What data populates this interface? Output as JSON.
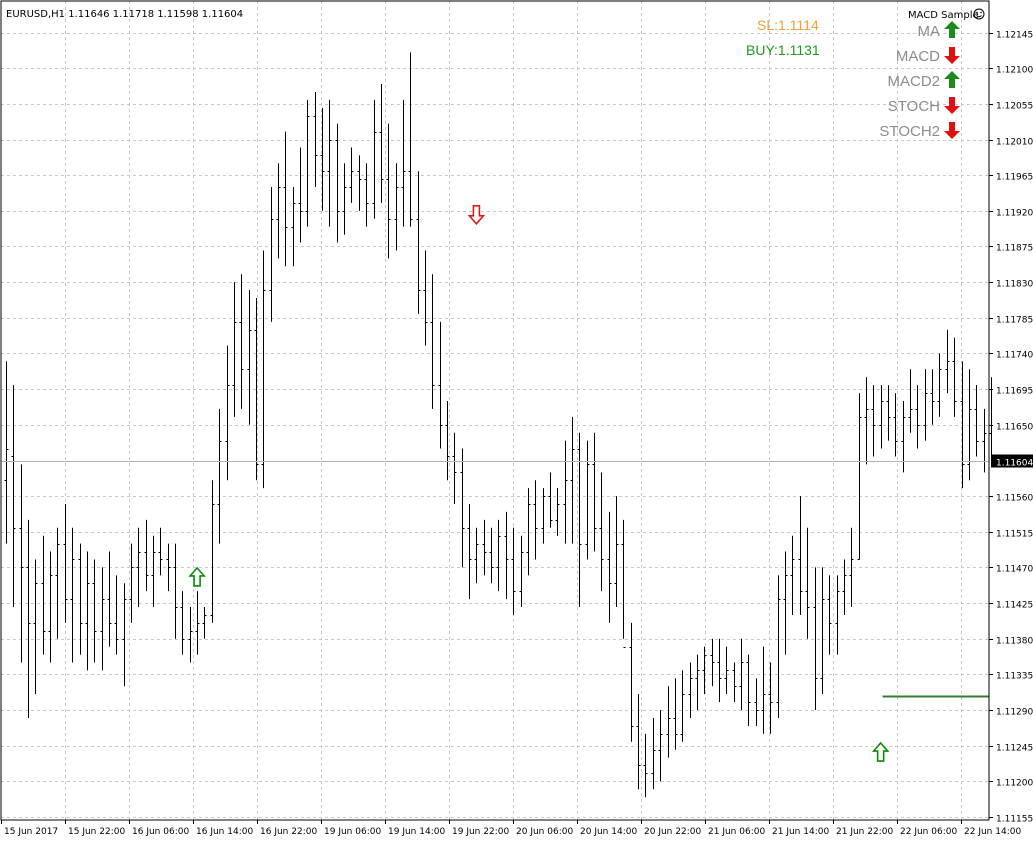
{
  "chart_data": {
    "type": "ohlc",
    "symbol_header": "EURUSD,H1  1.11646 1.11718 1.11598 1.11604",
    "expert_name": "MACD Sample",
    "ylim": [
      1.11155,
      1.12152
    ],
    "y_ticks": [
      "1.12145",
      "1.12100",
      "1.12055",
      "1.12010",
      "1.11965",
      "1.11920",
      "1.11875",
      "1.11830",
      "1.11785",
      "1.11740",
      "1.11695",
      "1.11650",
      "1.11604",
      "1.11560",
      "1.11515",
      "1.11470",
      "1.11425",
      "1.11380",
      "1.11335",
      "1.11290",
      "1.11245",
      "1.11200",
      "1.11155"
    ],
    "y_tick_values": [
      1.12145,
      1.121,
      1.12055,
      1.1201,
      1.11965,
      1.1192,
      1.11875,
      1.1183,
      1.11785,
      1.1174,
      1.11695,
      1.1165,
      1.11604,
      1.1156,
      1.11515,
      1.1147,
      1.11425,
      1.1138,
      1.11335,
      1.1129,
      1.11245,
      1.112,
      1.11155
    ],
    "x_ticks": [
      "15 Jun 2017",
      "15 Jun 22:00",
      "16 Jun 06:00",
      "16 Jun 14:00",
      "16 Jun 22:00",
      "19 Jun 06:00",
      "19 Jun 14:00",
      "19 Jun 22:00",
      "20 Jun 06:00",
      "20 Jun 14:00",
      "20 Jun 22:00",
      "21 Jun 06:00",
      "21 Jun 14:00",
      "21 Jun 22:00",
      "22 Jun 06:00",
      "22 Jun 14:00"
    ],
    "current_price": 1.11604,
    "current_price_label": "1.11604",
    "grid": true,
    "bars": [
      [
        1.1158,
        1.1173,
        1.115,
        1.1162
      ],
      [
        1.1161,
        1.117,
        1.1142,
        1.1152
      ],
      [
        1.1152,
        1.116,
        1.1135,
        1.1147
      ],
      [
        1.1147,
        1.1153,
        1.1128,
        1.114
      ],
      [
        1.114,
        1.1148,
        1.1131,
        1.1145
      ],
      [
        1.1145,
        1.1151,
        1.1136,
        1.1139
      ],
      [
        1.1139,
        1.1149,
        1.1135,
        1.1146
      ],
      [
        1.1146,
        1.1152,
        1.1138,
        1.115
      ],
      [
        1.115,
        1.1155,
        1.114,
        1.1143
      ],
      [
        1.1143,
        1.1152,
        1.1135,
        1.1148
      ],
      [
        1.1148,
        1.115,
        1.1136,
        1.114
      ],
      [
        1.114,
        1.1149,
        1.1134,
        1.1145
      ],
      [
        1.1145,
        1.1148,
        1.1135,
        1.1139
      ],
      [
        1.1139,
        1.1147,
        1.1134,
        1.1143
      ],
      [
        1.1143,
        1.1149,
        1.1137,
        1.114
      ],
      [
        1.114,
        1.1146,
        1.1136,
        1.1138
      ],
      [
        1.1138,
        1.1145,
        1.1132,
        1.1143
      ],
      [
        1.1143,
        1.115,
        1.114,
        1.1147
      ],
      [
        1.1147,
        1.1152,
        1.1142,
        1.1149
      ],
      [
        1.1149,
        1.1153,
        1.1144,
        1.1146
      ],
      [
        1.1146,
        1.1151,
        1.1142,
        1.1149
      ],
      [
        1.1149,
        1.1152,
        1.1146,
        1.1148
      ],
      [
        1.1148,
        1.115,
        1.1144,
        1.1147
      ],
      [
        1.1147,
        1.115,
        1.1138,
        1.1142
      ],
      [
        1.1142,
        1.1144,
        1.1136,
        1.1138
      ],
      [
        1.1138,
        1.1142,
        1.1135,
        1.1139
      ],
      [
        1.1139,
        1.1144,
        1.1136,
        1.114
      ],
      [
        1.114,
        1.1142,
        1.1138,
        1.1141
      ],
      [
        1.1141,
        1.1158,
        1.114,
        1.1155
      ],
      [
        1.1155,
        1.1167,
        1.115,
        1.1163
      ],
      [
        1.1163,
        1.1175,
        1.1158,
        1.117
      ],
      [
        1.117,
        1.1183,
        1.1166,
        1.1178
      ],
      [
        1.1178,
        1.1184,
        1.1167,
        1.1172
      ],
      [
        1.1172,
        1.1182,
        1.1165,
        1.1177
      ],
      [
        1.1177,
        1.1181,
        1.1158,
        1.116
      ],
      [
        1.116,
        1.1187,
        1.1157,
        1.1182
      ],
      [
        1.1182,
        1.1195,
        1.1178,
        1.1191
      ],
      [
        1.1191,
        1.1198,
        1.1186,
        1.1195
      ],
      [
        1.1195,
        1.1202,
        1.1185,
        1.119
      ],
      [
        1.119,
        1.1195,
        1.1185,
        1.1193
      ],
      [
        1.1193,
        1.12,
        1.1188,
        1.1192
      ],
      [
        1.1192,
        1.1206,
        1.119,
        1.1204
      ],
      [
        1.1204,
        1.1207,
        1.1195,
        1.1199
      ],
      [
        1.1199,
        1.1205,
        1.1192,
        1.1197
      ],
      [
        1.1197,
        1.1206,
        1.119,
        1.1201
      ],
      [
        1.1201,
        1.1203,
        1.1188,
        1.1192
      ],
      [
        1.1192,
        1.1198,
        1.1189,
        1.1195
      ],
      [
        1.1195,
        1.12,
        1.1193,
        1.1197
      ],
      [
        1.1197,
        1.1199,
        1.1192,
        1.1196
      ],
      [
        1.1196,
        1.1198,
        1.119,
        1.1193
      ],
      [
        1.1193,
        1.1206,
        1.1191,
        1.1202
      ],
      [
        1.1202,
        1.1208,
        1.1193,
        1.1196
      ],
      [
        1.1196,
        1.1203,
        1.1186,
        1.1191
      ],
      [
        1.1191,
        1.1198,
        1.1187,
        1.1195
      ],
      [
        1.1195,
        1.1206,
        1.119,
        1.1197
      ],
      [
        1.1197,
        1.1212,
        1.119,
        1.1191
      ],
      [
        1.1191,
        1.1197,
        1.1179,
        1.1182
      ],
      [
        1.1182,
        1.1187,
        1.1175,
        1.1178
      ],
      [
        1.1178,
        1.1184,
        1.1167,
        1.117
      ],
      [
        1.117,
        1.1178,
        1.1162,
        1.1165
      ],
      [
        1.1165,
        1.1168,
        1.1158,
        1.1161
      ],
      [
        1.1161,
        1.1164,
        1.1155,
        1.1159
      ],
      [
        1.1159,
        1.1162,
        1.1147,
        1.1152
      ],
      [
        1.1152,
        1.1155,
        1.1143,
        1.1148
      ],
      [
        1.1148,
        1.1152,
        1.1145,
        1.115
      ],
      [
        1.115,
        1.1153,
        1.1146,
        1.1149
      ],
      [
        1.1149,
        1.1152,
        1.1145,
        1.1147
      ],
      [
        1.1147,
        1.1153,
        1.1144,
        1.1151
      ],
      [
        1.1151,
        1.1154,
        1.1143,
        1.1148
      ],
      [
        1.1148,
        1.1152,
        1.1141,
        1.1144
      ],
      [
        1.1144,
        1.1151,
        1.1142,
        1.1149
      ],
      [
        1.1149,
        1.1157,
        1.1146,
        1.1155
      ],
      [
        1.1155,
        1.1158,
        1.1148,
        1.1152
      ],
      [
        1.1152,
        1.1157,
        1.115,
        1.1156
      ],
      [
        1.1156,
        1.1159,
        1.1152,
        1.1153
      ],
      [
        1.1153,
        1.1157,
        1.1151,
        1.1155
      ],
      [
        1.1155,
        1.1163,
        1.115,
        1.1158
      ],
      [
        1.1158,
        1.1166,
        1.115,
        1.1162
      ],
      [
        1.1162,
        1.1164,
        1.1142,
        1.115
      ],
      [
        1.115,
        1.1163,
        1.1148,
        1.116
      ],
      [
        1.116,
        1.1164,
        1.1149,
        1.1152
      ],
      [
        1.1152,
        1.1159,
        1.1144,
        1.1148
      ],
      [
        1.1148,
        1.1154,
        1.114,
        1.1145
      ],
      [
        1.1145,
        1.1156,
        1.1142,
        1.115
      ],
      [
        1.115,
        1.1153,
        1.1138,
        1.1137
      ],
      [
        1.1137,
        1.114,
        1.1125,
        1.1127
      ],
      [
        1.1127,
        1.1131,
        1.1119,
        1.1122
      ],
      [
        1.1122,
        1.1126,
        1.1118,
        1.1121
      ],
      [
        1.1121,
        1.1128,
        1.1119,
        1.1124
      ],
      [
        1.1124,
        1.1129,
        1.112,
        1.1126
      ],
      [
        1.1126,
        1.1132,
        1.1123,
        1.1128
      ],
      [
        1.1128,
        1.1133,
        1.1124,
        1.1126
      ],
      [
        1.1126,
        1.1134,
        1.1125,
        1.1131
      ],
      [
        1.1131,
        1.1135,
        1.1128,
        1.1133
      ],
      [
        1.1133,
        1.1136,
        1.1129,
        1.1134
      ],
      [
        1.1134,
        1.1137,
        1.1131,
        1.1136
      ],
      [
        1.1136,
        1.1138,
        1.1132,
        1.1135
      ],
      [
        1.1135,
        1.1138,
        1.113,
        1.1133
      ],
      [
        1.1133,
        1.1137,
        1.1131,
        1.1134
      ],
      [
        1.1134,
        1.1135,
        1.113,
        1.1132
      ],
      [
        1.1132,
        1.1138,
        1.1129,
        1.1135
      ],
      [
        1.1135,
        1.1136,
        1.1127,
        1.113
      ],
      [
        1.113,
        1.1133,
        1.1127,
        1.1129
      ],
      [
        1.1129,
        1.1137,
        1.1126,
        1.1131
      ],
      [
        1.1131,
        1.1135,
        1.1126,
        1.113
      ],
      [
        1.113,
        1.1146,
        1.1128,
        1.1143
      ],
      [
        1.1143,
        1.1149,
        1.1136,
        1.1146
      ],
      [
        1.1146,
        1.1151,
        1.1141,
        1.1148
      ],
      [
        1.1148,
        1.1156,
        1.1141,
        1.1144
      ],
      [
        1.1144,
        1.1152,
        1.1138,
        1.1142
      ],
      [
        1.1142,
        1.1147,
        1.1129,
        1.1133
      ],
      [
        1.1133,
        1.1147,
        1.1131,
        1.1143
      ],
      [
        1.1143,
        1.1146,
        1.1136,
        1.114
      ],
      [
        1.114,
        1.1146,
        1.1136,
        1.1144
      ],
      [
        1.1144,
        1.1148,
        1.1141,
        1.1146
      ],
      [
        1.1146,
        1.1152,
        1.1142,
        1.1148
      ],
      [
        1.1148,
        1.1169,
        1.1148,
        1.1166
      ],
      [
        1.1166,
        1.1171,
        1.116,
        1.1167
      ],
      [
        1.1167,
        1.117,
        1.1161,
        1.1165
      ],
      [
        1.1165,
        1.117,
        1.1162,
        1.1168
      ],
      [
        1.1168,
        1.117,
        1.1163,
        1.1166
      ],
      [
        1.1166,
        1.1169,
        1.1161,
        1.1163
      ],
      [
        1.1163,
        1.1168,
        1.1159,
        1.1166
      ],
      [
        1.1166,
        1.1172,
        1.1164,
        1.1167
      ],
      [
        1.1167,
        1.117,
        1.1162,
        1.1165
      ],
      [
        1.1165,
        1.1172,
        1.1163,
        1.1169
      ],
      [
        1.1169,
        1.1172,
        1.1165,
        1.1168
      ],
      [
        1.1168,
        1.1174,
        1.1166,
        1.1172
      ],
      [
        1.1172,
        1.1177,
        1.1169,
        1.1173
      ],
      [
        1.1173,
        1.1176,
        1.1166,
        1.1168
      ],
      [
        1.1168,
        1.1173,
        1.1157,
        1.116
      ],
      [
        1.116,
        1.1172,
        1.1158,
        1.1167
      ],
      [
        1.1167,
        1.117,
        1.1161,
        1.1163
      ],
      [
        1.1163,
        1.1167,
        1.1159,
        1.1164
      ],
      [
        1.1164,
        1.1171,
        1.116,
        1.116
      ]
    ],
    "signal_arrows": [
      {
        "direction": "up",
        "color": "#0a8a0a",
        "bar": 26,
        "price": 1.11458
      },
      {
        "direction": "down",
        "color": "#e01b1b",
        "bar": 64,
        "price": 1.11915
      },
      {
        "direction": "up",
        "color": "#0a8a0a",
        "bar": 119,
        "price": 1.11237
      }
    ],
    "horizontal_line": {
      "price": 1.11308,
      "color": "#2f7d2f",
      "from_bar": 119
    }
  },
  "trade_info": {
    "sl_label": "SL:1.1114",
    "sl_color": "#f0a030",
    "buy_label": "BUY:1.1131",
    "buy_color": "#1f9a1f"
  },
  "indicators": [
    {
      "label": "MA",
      "signal": "up",
      "icon": "green-up-arrow-icon",
      "color": "#1e8a1e"
    },
    {
      "label": "MACD",
      "signal": "down",
      "icon": "red-down-arrow-icon",
      "color": "#e01010"
    },
    {
      "label": "MACD2",
      "signal": "up",
      "icon": "green-up-arrow-icon",
      "color": "#1e8a1e"
    },
    {
      "label": "STOCH",
      "signal": "down",
      "icon": "red-down-arrow-icon",
      "color": "#e01010"
    },
    {
      "label": "STOCH2",
      "signal": "down",
      "icon": "red-down-arrow-icon",
      "color": "#e01010"
    }
  ]
}
